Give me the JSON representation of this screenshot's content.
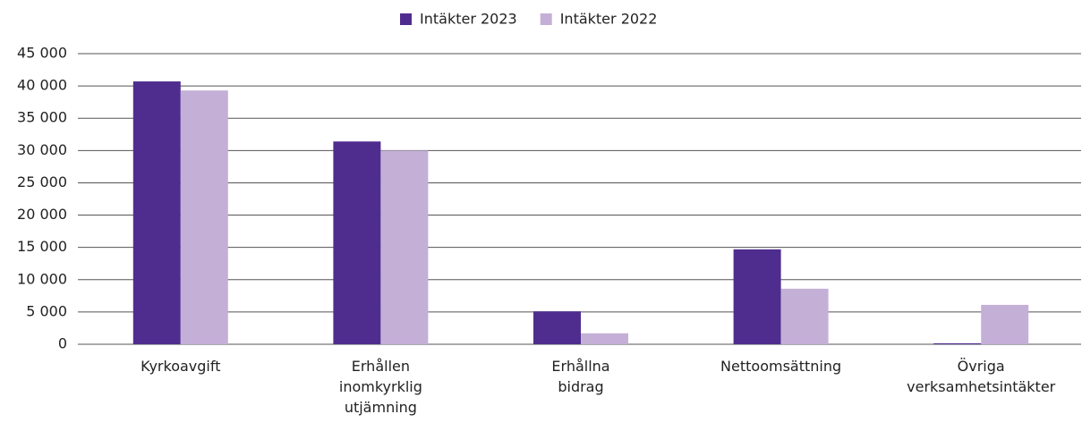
{
  "chart_data": {
    "type": "bar",
    "categories": [
      "Kyrkoavgift",
      "Erhållen inomkyrklig utjämning",
      "Erhållna bidrag",
      "Nettoomsättning",
      "Övriga verksamhetsintäkter"
    ],
    "series": [
      {
        "name": "Intäkter 2023",
        "color": "#4f2d8f",
        "values": [
          40700,
          31400,
          5100,
          14700,
          150
        ]
      },
      {
        "name": "Intäkter 2022",
        "color": "#c4b0d6",
        "values": [
          39300,
          30000,
          1700,
          8600,
          6100
        ]
      }
    ],
    "ylim": [
      0,
      45000
    ],
    "yticks": [
      0,
      {
        "value": 5000,
        "label": "5 000"
      },
      {
        "value": 10000,
        "label": "10 000"
      },
      {
        "value": 15000,
        "label": "15 000"
      },
      {
        "value": 20000,
        "label": "20 000"
      },
      {
        "value": 25000,
        "label": "25 000"
      },
      {
        "value": 30000,
        "label": "30 000"
      },
      {
        "value": 35000,
        "label": "35 000"
      },
      {
        "value": 40000,
        "label": "40 000"
      },
      {
        "value": 45000,
        "label": "45 000"
      }
    ],
    "grid": true,
    "legend": "top"
  }
}
